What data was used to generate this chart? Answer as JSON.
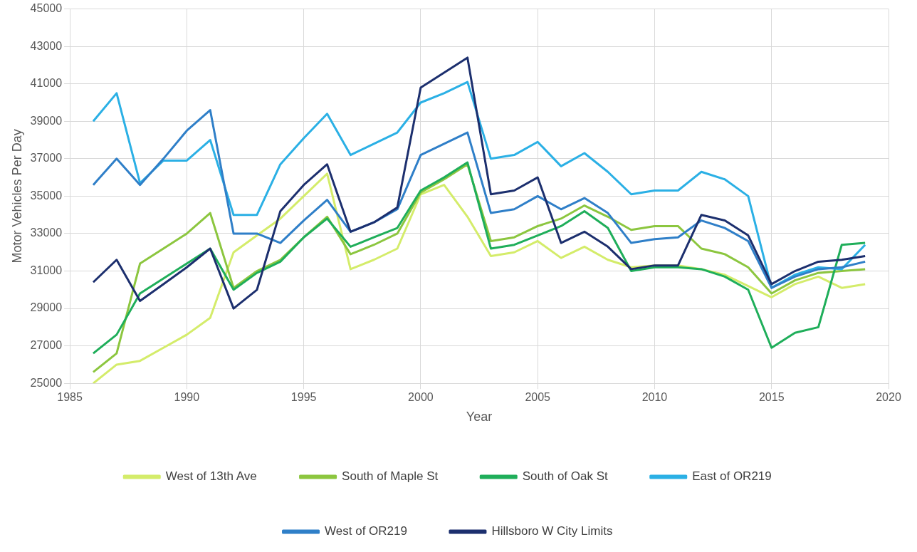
{
  "chart_data": {
    "type": "line",
    "xlabel": "Year",
    "ylabel": "Motor Vehicles Per Day",
    "x": [
      1986,
      1987,
      1988,
      1989,
      1990,
      1991,
      1992,
      1993,
      1994,
      1995,
      1996,
      1997,
      1998,
      1999,
      2000,
      2001,
      2002,
      2003,
      2004,
      2005,
      2006,
      2007,
      2008,
      2009,
      2010,
      2011,
      2012,
      2013,
      2014,
      2015,
      2016,
      2017,
      2018,
      2019
    ],
    "xlim": [
      1985,
      2020
    ],
    "xticks": [
      1985,
      1990,
      1995,
      2000,
      2005,
      2010,
      2015,
      2020
    ],
    "ylim": [
      25000,
      45000
    ],
    "yticks": [
      25000,
      27000,
      29000,
      31000,
      33000,
      35000,
      37000,
      39000,
      41000,
      43000,
      45000
    ],
    "grid": true,
    "legend": "bottom",
    "marker": "none",
    "line_style": "solid",
    "series": [
      {
        "name": "West of 13th Ave",
        "color": "#d4ec6a",
        "values": [
          25000,
          26000,
          26200,
          26900,
          27600,
          28500,
          32000,
          32900,
          33800,
          35000,
          36200,
          31100,
          31600,
          32200,
          35100,
          35600,
          33900,
          31800,
          32000,
          32600,
          31700,
          32300,
          31600,
          31200,
          31300,
          31300,
          31100,
          30800,
          30200,
          29600,
          30300,
          30700,
          30100,
          30300
        ]
      },
      {
        "name": "South of Maple St",
        "color": "#8cc63f",
        "values": [
          25600,
          26600,
          31400,
          32200,
          33000,
          34100,
          30100,
          31000,
          31600,
          32800,
          33900,
          31900,
          32400,
          33000,
          35200,
          35900,
          36700,
          32600,
          32800,
          33400,
          33800,
          34500,
          33900,
          33200,
          33400,
          33400,
          32200,
          31900,
          31200,
          29800,
          30500,
          30900,
          31000,
          31100
        ]
      },
      {
        "name": "South of Oak St",
        "color": "#1fae5a",
        "values": [
          26600,
          27600,
          29800,
          30600,
          31400,
          32200,
          30000,
          30900,
          31500,
          32800,
          33800,
          32300,
          32800,
          33300,
          35300,
          36000,
          36800,
          32200,
          32400,
          32900,
          33400,
          34200,
          33300,
          31000,
          31200,
          31200,
          31100,
          30700,
          30000,
          26900,
          27700,
          28000,
          32400,
          32500
        ]
      },
      {
        "name": "East of OR219",
        "color": "#2bb0e5",
        "values": [
          39000,
          40500,
          35700,
          36900,
          36900,
          38000,
          34000,
          34000,
          36700,
          38100,
          39400,
          37200,
          37800,
          38400,
          40000,
          40500,
          41100,
          37000,
          37200,
          37900,
          36600,
          37300,
          36300,
          35100,
          35300,
          35300,
          36300,
          35900,
          35000,
          30100,
          30800,
          31200,
          31100,
          32400
        ]
      },
      {
        "name": "West of OR219",
        "color": "#2f7fc8",
        "values": [
          35600,
          37000,
          35600,
          37000,
          38500,
          39600,
          33000,
          33000,
          32500,
          33700,
          34800,
          33100,
          33600,
          34300,
          37200,
          37800,
          38400,
          34100,
          34300,
          35000,
          34300,
          34900,
          34100,
          32500,
          32700,
          32800,
          33700,
          33300,
          32600,
          30100,
          30700,
          31100,
          31200,
          31500
        ]
      },
      {
        "name": "Hillsboro W City Limits",
        "color": "#1c2f6e",
        "values": [
          30400,
          31600,
          29400,
          30300,
          31200,
          32200,
          29000,
          30000,
          34200,
          35600,
          36700,
          33100,
          33600,
          34400,
          40800,
          41600,
          42400,
          35100,
          35300,
          36000,
          32500,
          33100,
          32300,
          31100,
          31300,
          31300,
          34000,
          33700,
          32900,
          30300,
          31000,
          31500,
          31600,
          31800
        ]
      }
    ]
  }
}
